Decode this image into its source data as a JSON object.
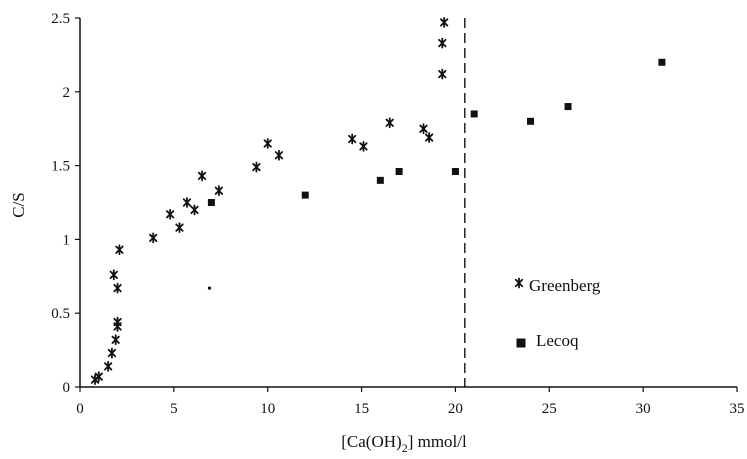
{
  "chart_data": {
    "type": "scatter",
    "xlabel": "[Ca(OH)",
    "xlabel_sub": "2",
    "xlabel_tail": "] mmol/l",
    "ylabel": "C/S",
    "xlim": [
      0,
      35
    ],
    "ylim": [
      0,
      2.5
    ],
    "x_ticks": [
      0,
      5,
      10,
      15,
      20,
      25,
      30,
      35
    ],
    "y_ticks": [
      0,
      0.5,
      1,
      1.5,
      2,
      2.5
    ],
    "x_tick_labels": [
      "0",
      "5",
      "10",
      "15",
      "20",
      "25",
      "30",
      "35"
    ],
    "y_tick_labels": [
      "0",
      "0.5",
      "1",
      "1.5",
      "2",
      "2.5"
    ],
    "grid": false,
    "legend_position": "right, lower-middle",
    "reference_line": {
      "x": 20.5,
      "style": "dashed",
      "color": "#000000"
    },
    "series": [
      {
        "name": "Greenberg",
        "marker": "asterisk",
        "color": "#111111",
        "points": [
          [
            0.8,
            0.05
          ],
          [
            1.0,
            0.07
          ],
          [
            1.5,
            0.14
          ],
          [
            1.7,
            0.23
          ],
          [
            1.8,
            0.76
          ],
          [
            1.9,
            0.32
          ],
          [
            2.0,
            0.41
          ],
          [
            2.0,
            0.44
          ],
          [
            2.0,
            0.67
          ],
          [
            2.1,
            0.93
          ],
          [
            3.9,
            1.01
          ],
          [
            4.8,
            1.17
          ],
          [
            5.3,
            1.08
          ],
          [
            5.7,
            1.25
          ],
          [
            6.1,
            1.2
          ],
          [
            6.5,
            1.43
          ],
          [
            7.4,
            1.33
          ],
          [
            9.4,
            1.49
          ],
          [
            10.0,
            1.65
          ],
          [
            10.6,
            1.57
          ],
          [
            14.5,
            1.68
          ],
          [
            15.1,
            1.63
          ],
          [
            16.5,
            1.79
          ],
          [
            18.3,
            1.75
          ],
          [
            18.6,
            1.69
          ],
          [
            19.3,
            2.12
          ],
          [
            19.3,
            2.33
          ],
          [
            19.4,
            2.47
          ]
        ]
      },
      {
        "name": "Lecoq",
        "marker": "square",
        "color": "#111111",
        "points": [
          [
            7.0,
            1.25
          ],
          [
            12.0,
            1.3
          ],
          [
            16.0,
            1.4
          ],
          [
            17.0,
            1.46
          ],
          [
            20.0,
            1.46
          ],
          [
            21.0,
            1.85
          ],
          [
            24.0,
            1.8
          ],
          [
            26.0,
            1.9
          ],
          [
            31.0,
            2.2
          ]
        ]
      }
    ],
    "stray_dot": [
      6.9,
      0.67
    ]
  }
}
